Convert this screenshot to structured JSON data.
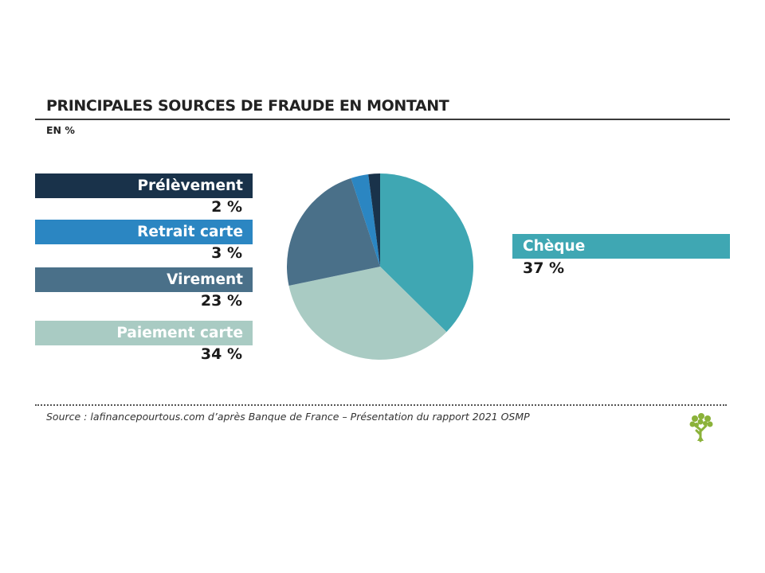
{
  "header": {
    "title": "PRINCIPALES SOURCES DE FRAUDE EN MONTANT",
    "subtitle": "EN %"
  },
  "footer": {
    "source": "Source : lafinancepourtous.com d’après Banque de France – Présentation du rapport 2021 OSMP"
  },
  "chart_data": {
    "type": "pie",
    "title": "PRINCIPALES SOURCES DE FRAUDE EN MONTANT",
    "unit": "EN %",
    "categories": [
      "Chèque",
      "Paiement carte",
      "Virement",
      "Retrait carte",
      "Prélèvement"
    ],
    "values": [
      37,
      34,
      23,
      3,
      2
    ],
    "labels": [
      "37 %",
      "34 %",
      "23 %",
      "3 %",
      "2 %"
    ],
    "colors": [
      "#3fa7b3",
      "#a9cbc3",
      "#4a7089",
      "#2b86c2",
      "#19324a"
    ],
    "legend": "left and right"
  }
}
